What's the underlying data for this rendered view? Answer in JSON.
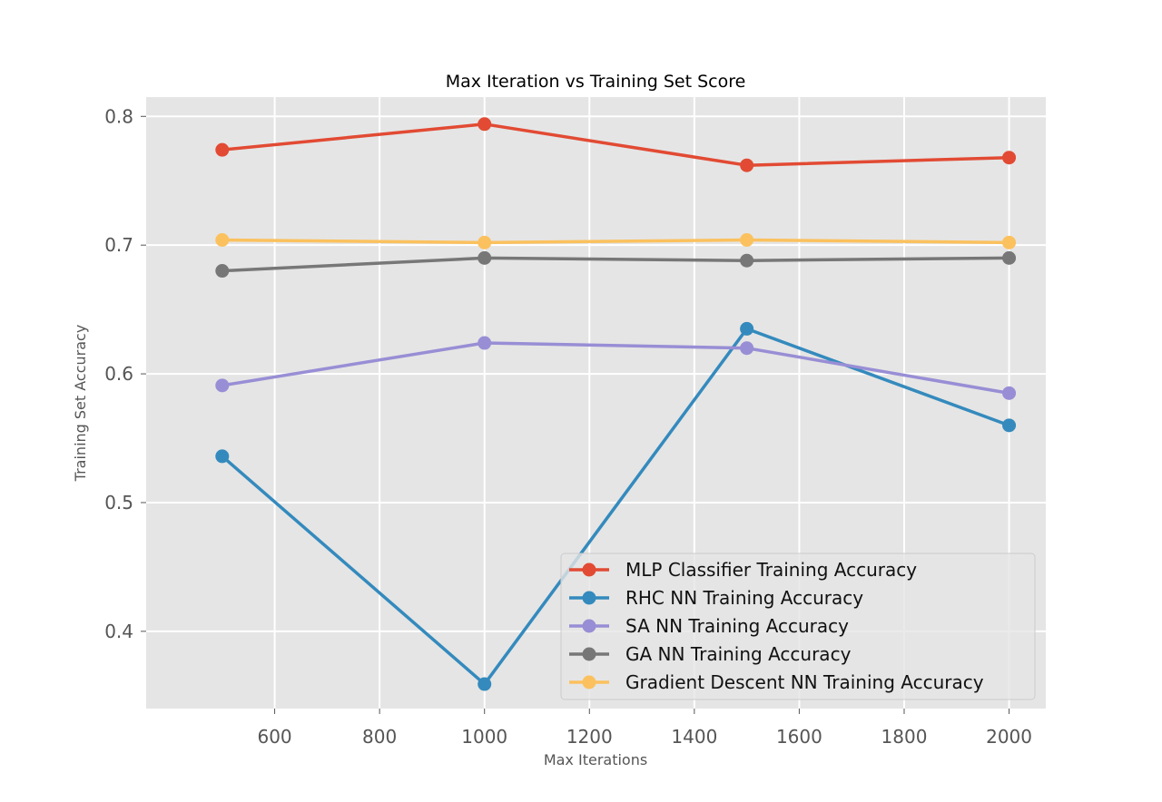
{
  "chart_data": {
    "type": "line",
    "title": "Max Iteration vs Training Set Score",
    "xlabel": "Max Iterations",
    "ylabel": "Training Set Accuracy",
    "xlim": [
      355,
      2070
    ],
    "ylim": [
      0.34,
      0.815
    ],
    "xticks": [
      600,
      800,
      1000,
      1200,
      1400,
      1600,
      1800,
      2000
    ],
    "yticks": [
      0.4,
      0.5,
      0.6,
      0.7,
      0.8
    ],
    "x": [
      500,
      1000,
      1500,
      2000
    ],
    "grid": true,
    "legend_position": "lower-right",
    "series": [
      {
        "name": "MLP Classifier Training Accuracy",
        "color": "#E24A33",
        "values": [
          0.774,
          0.794,
          0.762,
          0.768
        ]
      },
      {
        "name": "RHC NN Training Accuracy",
        "color": "#348ABD",
        "values": [
          0.536,
          0.359,
          0.635,
          0.56
        ]
      },
      {
        "name": "SA NN Training Accuracy",
        "color": "#988ED5",
        "values": [
          0.591,
          0.624,
          0.62,
          0.585
        ]
      },
      {
        "name": "GA NN Training Accuracy",
        "color": "#777777",
        "values": [
          0.68,
          0.69,
          0.688,
          0.69
        ]
      },
      {
        "name": "Gradient Descent NN Training Accuracy",
        "color": "#FBC15E",
        "values": [
          0.704,
          0.702,
          0.704,
          0.702
        ]
      }
    ]
  }
}
